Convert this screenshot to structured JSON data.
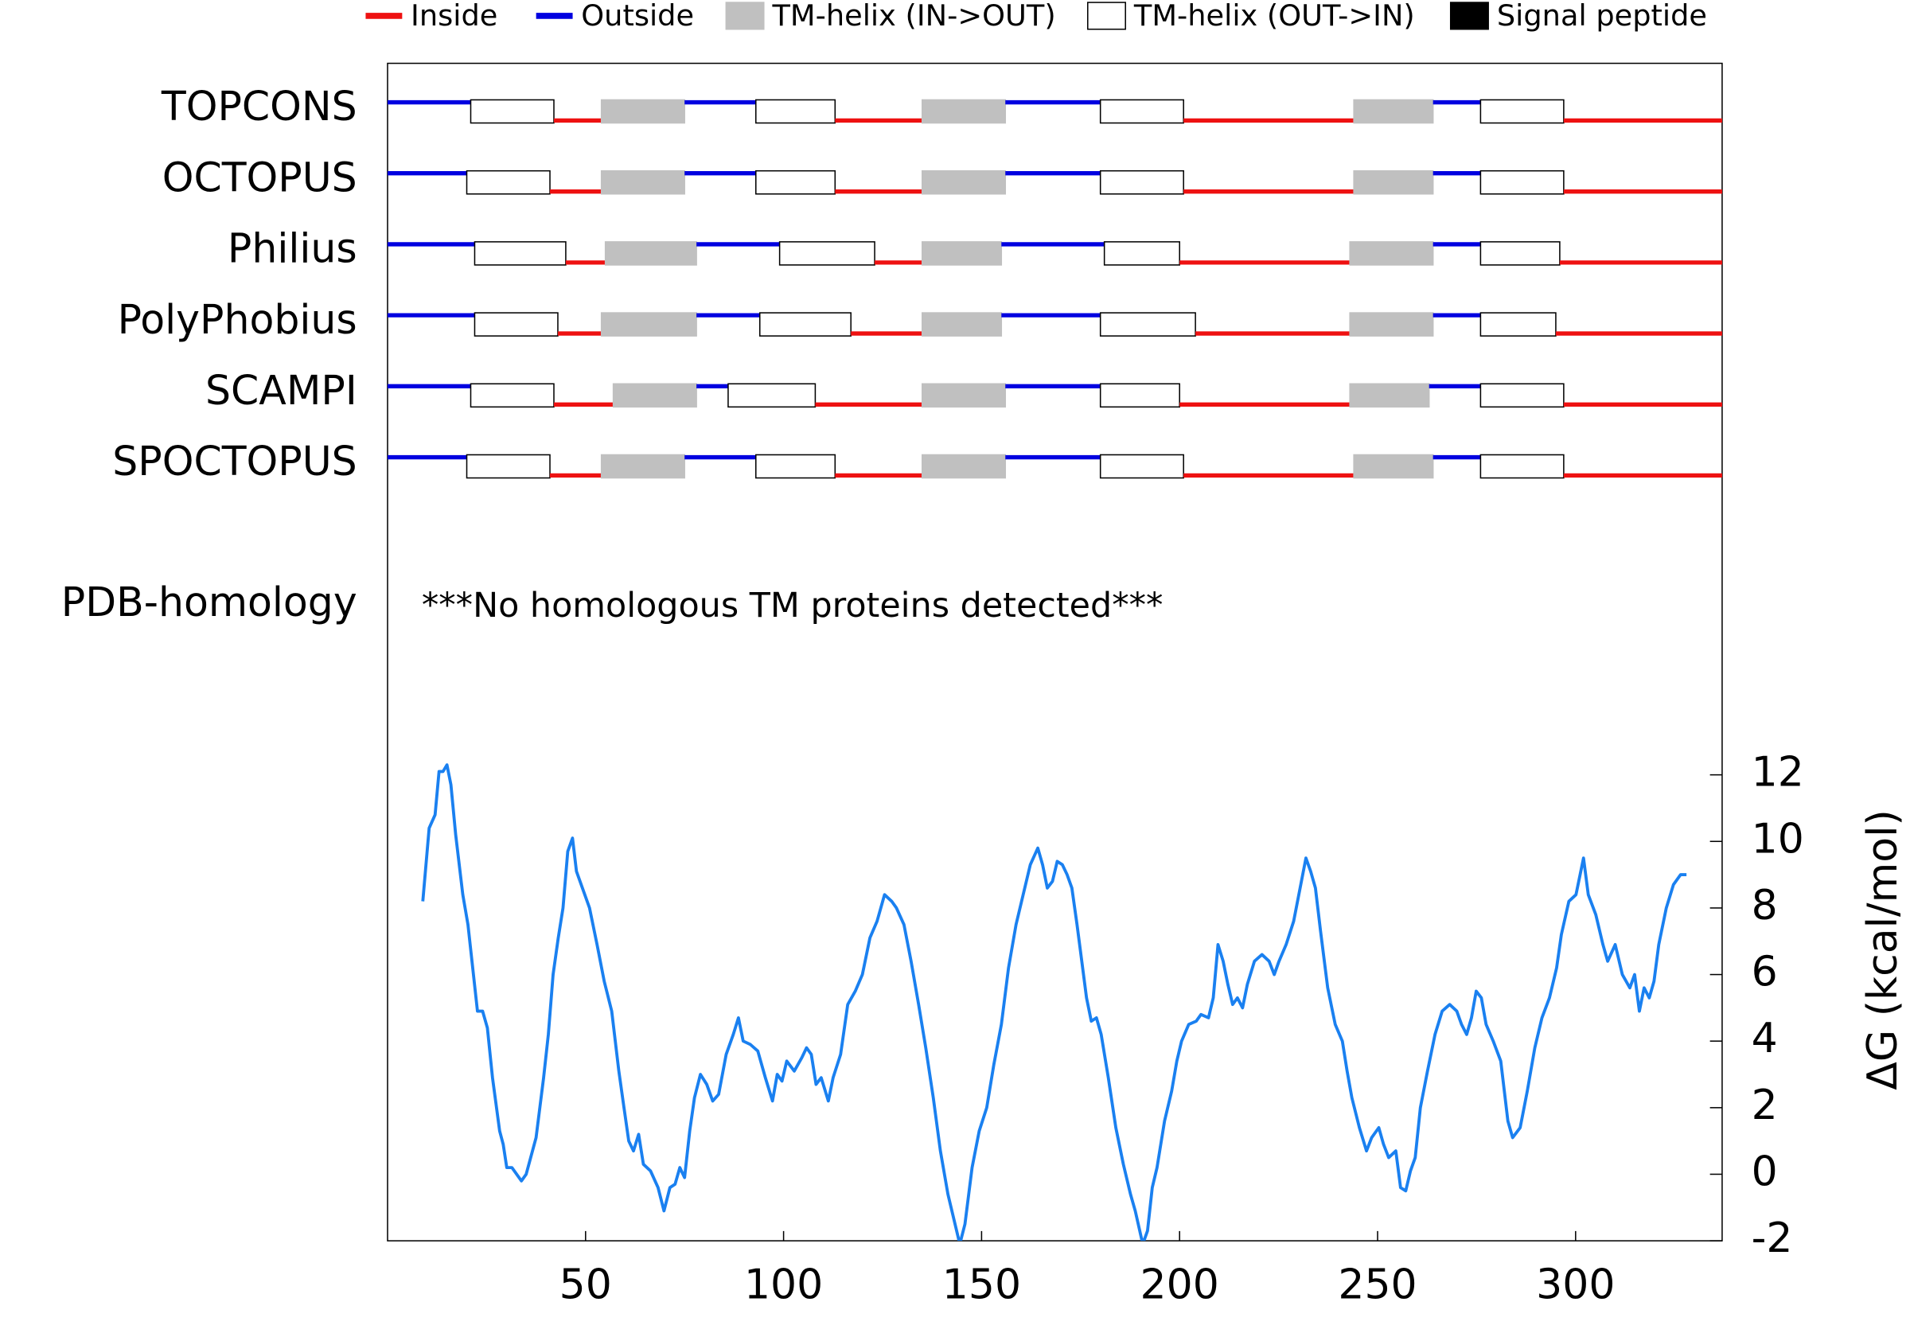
{
  "chart_data": {
    "type": "topology",
    "legend": [
      {
        "name": "Inside",
        "color": "#ee1111"
      },
      {
        "name": "Outside",
        "color": "#0000e0"
      },
      {
        "name": "TM-helix (IN->OUT)",
        "color": "#c0c0c0"
      },
      {
        "name": "TM-helix (OUT->IN)",
        "color": "#ffffff"
      },
      {
        "name": "Signal peptide",
        "color": "#000000"
      }
    ],
    "tracks": [
      {
        "name": "TOPCONS",
        "helices": [
          [
            21,
            42
          ],
          [
            54,
            75
          ],
          [
            93,
            113
          ],
          [
            135,
            156
          ],
          [
            180,
            201
          ],
          [
            244,
            264
          ],
          [
            276,
            297
          ]
        ]
      },
      {
        "name": "OCTOPUS",
        "helices": [
          [
            20,
            41
          ],
          [
            54,
            75
          ],
          [
            93,
            113
          ],
          [
            135,
            156
          ],
          [
            180,
            201
          ],
          [
            244,
            264
          ],
          [
            276,
            297
          ]
        ]
      },
      {
        "name": "Philius",
        "helices": [
          [
            22,
            45
          ],
          [
            55,
            78
          ],
          [
            99,
            123
          ],
          [
            135,
            155
          ],
          [
            181,
            200
          ],
          [
            243,
            264
          ],
          [
            276,
            296
          ]
        ]
      },
      {
        "name": "PolyPhobius",
        "helices": [
          [
            22,
            43
          ],
          [
            54,
            78
          ],
          [
            94,
            117
          ],
          [
            135,
            155
          ],
          [
            180,
            204
          ],
          [
            243,
            264
          ],
          [
            276,
            295
          ]
        ]
      },
      {
        "name": "SCAMPI",
        "helices": [
          [
            21,
            42
          ],
          [
            57,
            78
          ],
          [
            86,
            108
          ],
          [
            135,
            156
          ],
          [
            180,
            200
          ],
          [
            243,
            263
          ],
          [
            276,
            297
          ]
        ]
      },
      {
        "name": "SPOCTOPUS",
        "helices": [
          [
            20,
            41
          ],
          [
            54,
            75
          ],
          [
            93,
            113
          ],
          [
            135,
            156
          ],
          [
            180,
            201
          ],
          [
            244,
            264
          ],
          [
            276,
            297
          ]
        ]
      }
    ],
    "homology_label": "PDB-homology",
    "homology_note": "***No homologous TM proteins detected***",
    "xlim": [
      0,
      337
    ],
    "xticks": [
      50,
      100,
      150,
      200,
      250,
      300
    ],
    "dg": {
      "type": "line",
      "ylabel": "ΔG (kcal/mol)",
      "color": "#1a80f0",
      "ylim": [
        -2,
        13
      ],
      "yticks": [
        -2,
        0,
        2,
        4,
        6,
        8,
        10,
        12
      ],
      "x": [
        8.9,
        10.5,
        12,
        13,
        14,
        15,
        16,
        17.2,
        19,
        20.3,
        21.5,
        22.7,
        24,
        25.2,
        26.5,
        28.3,
        29.2,
        30.1,
        31.4,
        33.8,
        35,
        37.5,
        39.4,
        40.6,
        41.8,
        43.1,
        44.3,
        45.5,
        46.7,
        47.7,
        49.2,
        51,
        52.9,
        54.7,
        56.6,
        58.4,
        59.7,
        60.9,
        62.1,
        63.4,
        64.6,
        66.4,
        68.3,
        69.8,
        71.3,
        72.6,
        73.8,
        75,
        76.3,
        77.5,
        79,
        80.6,
        82.1,
        83.6,
        85.5,
        87.3,
        88.6,
        89.8,
        91.6,
        93.5,
        95.4,
        97.2,
        98.4,
        99.6,
        100.8,
        102.7,
        104.6,
        105.8,
        107,
        108.2,
        109.5,
        111.3,
        112.5,
        114.4,
        116.2,
        118.1,
        119.9,
        121.8,
        123.6,
        125.5,
        127.3,
        128.5,
        130.4,
        132.2,
        134.1,
        135.9,
        137.8,
        139.6,
        141.5,
        143.3,
        144.5,
        145.8,
        147.6,
        149.4,
        151.3,
        153.1,
        155,
        156.8,
        158.7,
        160.5,
        162.3,
        164.2,
        165.4,
        166.6,
        167.9,
        169.1,
        170.4,
        171.6,
        172.8,
        174.1,
        175.3,
        176.5,
        177.7,
        179,
        180.2,
        182,
        183.9,
        185.8,
        187.6,
        188.8,
        190.7,
        191.9,
        193.1,
        194.3,
        196.2,
        198,
        199.3,
        200.5,
        202.3,
        204.2,
        205.4,
        207.3,
        208.5,
        209.7,
        211,
        212.2,
        213.4,
        214.6,
        215.9,
        217.1,
        218.9,
        220.8,
        222.6,
        223.9,
        225.1,
        226.9,
        228.8,
        230.6,
        231.9,
        233.1,
        234.3,
        235.6,
        237.4,
        239.3,
        241.1,
        242.3,
        243.5,
        245.4,
        247.2,
        248.5,
        250.3,
        251.5,
        252.8,
        254.6,
        255.8,
        257.1,
        258.3,
        259.5,
        260.8,
        262.6,
        264.5,
        266.3,
        268.2,
        270,
        271.2,
        272.5,
        273.7,
        274.9,
        276.2,
        277.4,
        279.2,
        281.1,
        282.9,
        284.1,
        286,
        287.8,
        289.7,
        291.5,
        293.4,
        295.2,
        296.4,
        298.3,
        300.1,
        302,
        303.2,
        305.1,
        306.9,
        308.1,
        310,
        311.8,
        313.7,
        314.9,
        316.1,
        317.3,
        318.6,
        319.8,
        321,
        322.9,
        324.7,
        326.5,
        328
      ],
      "values": [
        8.2,
        10.4,
        10.8,
        12.1,
        12.1,
        12.3,
        11.7,
        10.2,
        8.4,
        7.5,
        6.2,
        4.9,
        4.9,
        4.4,
        2.9,
        1.3,
        0.9,
        0.2,
        0.2,
        -0.2,
        0,
        1.1,
        2.9,
        4.2,
        6,
        7.1,
        8,
        9.7,
        10.1,
        9.1,
        8.6,
        8,
        6.9,
        5.8,
        4.9,
        3.1,
        2,
        1,
        0.7,
        1.2,
        0.3,
        0.1,
        -0.4,
        -1.1,
        -0.4,
        -0.3,
        0.2,
        -0.1,
        1.3,
        2.3,
        3,
        2.7,
        2.2,
        2.4,
        3.6,
        4.2,
        4.7,
        4,
        3.9,
        3.7,
        2.9,
        2.2,
        3,
        2.8,
        3.4,
        3.1,
        3.5,
        3.8,
        3.6,
        2.7,
        2.9,
        2.2,
        2.9,
        3.6,
        5.1,
        5.5,
        6,
        7.1,
        7.6,
        8.4,
        8.2,
        8,
        7.5,
        6.4,
        5.1,
        3.8,
        2.3,
        0.7,
        -0.6,
        -1.5,
        -2.1,
        -1.5,
        0.2,
        1.3,
        2,
        3.3,
        4.5,
        6.2,
        7.5,
        8.4,
        9.3,
        9.8,
        9.3,
        8.6,
        8.8,
        9.4,
        9.3,
        9,
        8.6,
        7.5,
        6.4,
        5.3,
        4.6,
        4.7,
        4.2,
        2.9,
        1.4,
        0.3,
        -0.6,
        -1.1,
        -2.1,
        -1.7,
        -0.4,
        0.2,
        1.6,
        2.5,
        3.4,
        4,
        4.5,
        4.6,
        4.8,
        4.7,
        5.3,
        6.9,
        6.4,
        5.7,
        5.1,
        5.3,
        5,
        5.7,
        6.4,
        6.6,
        6.4,
        6,
        6.4,
        6.9,
        7.6,
        8.7,
        9.5,
        9.1,
        8.6,
        7.3,
        5.6,
        4.5,
        4,
        3.1,
        2.3,
        1.4,
        0.7,
        1.1,
        1.4,
        0.9,
        0.5,
        0.7,
        -0.4,
        -0.5,
        0.1,
        0.5,
        2,
        3.1,
        4.2,
        4.9,
        5.1,
        4.9,
        4.5,
        4.2,
        4.7,
        5.5,
        5.3,
        4.5,
        4,
        3.4,
        1.6,
        1.1,
        1.4,
        2.5,
        3.8,
        4.7,
        5.3,
        6.2,
        7.2,
        8.2,
        8.4,
        9.5,
        8.4,
        7.8,
        6.9,
        6.4,
        6.9,
        6,
        5.6,
        6,
        4.9,
        5.6,
        5.3,
        5.8,
        6.9,
        8,
        8.7,
        9,
        9
      ]
    }
  }
}
